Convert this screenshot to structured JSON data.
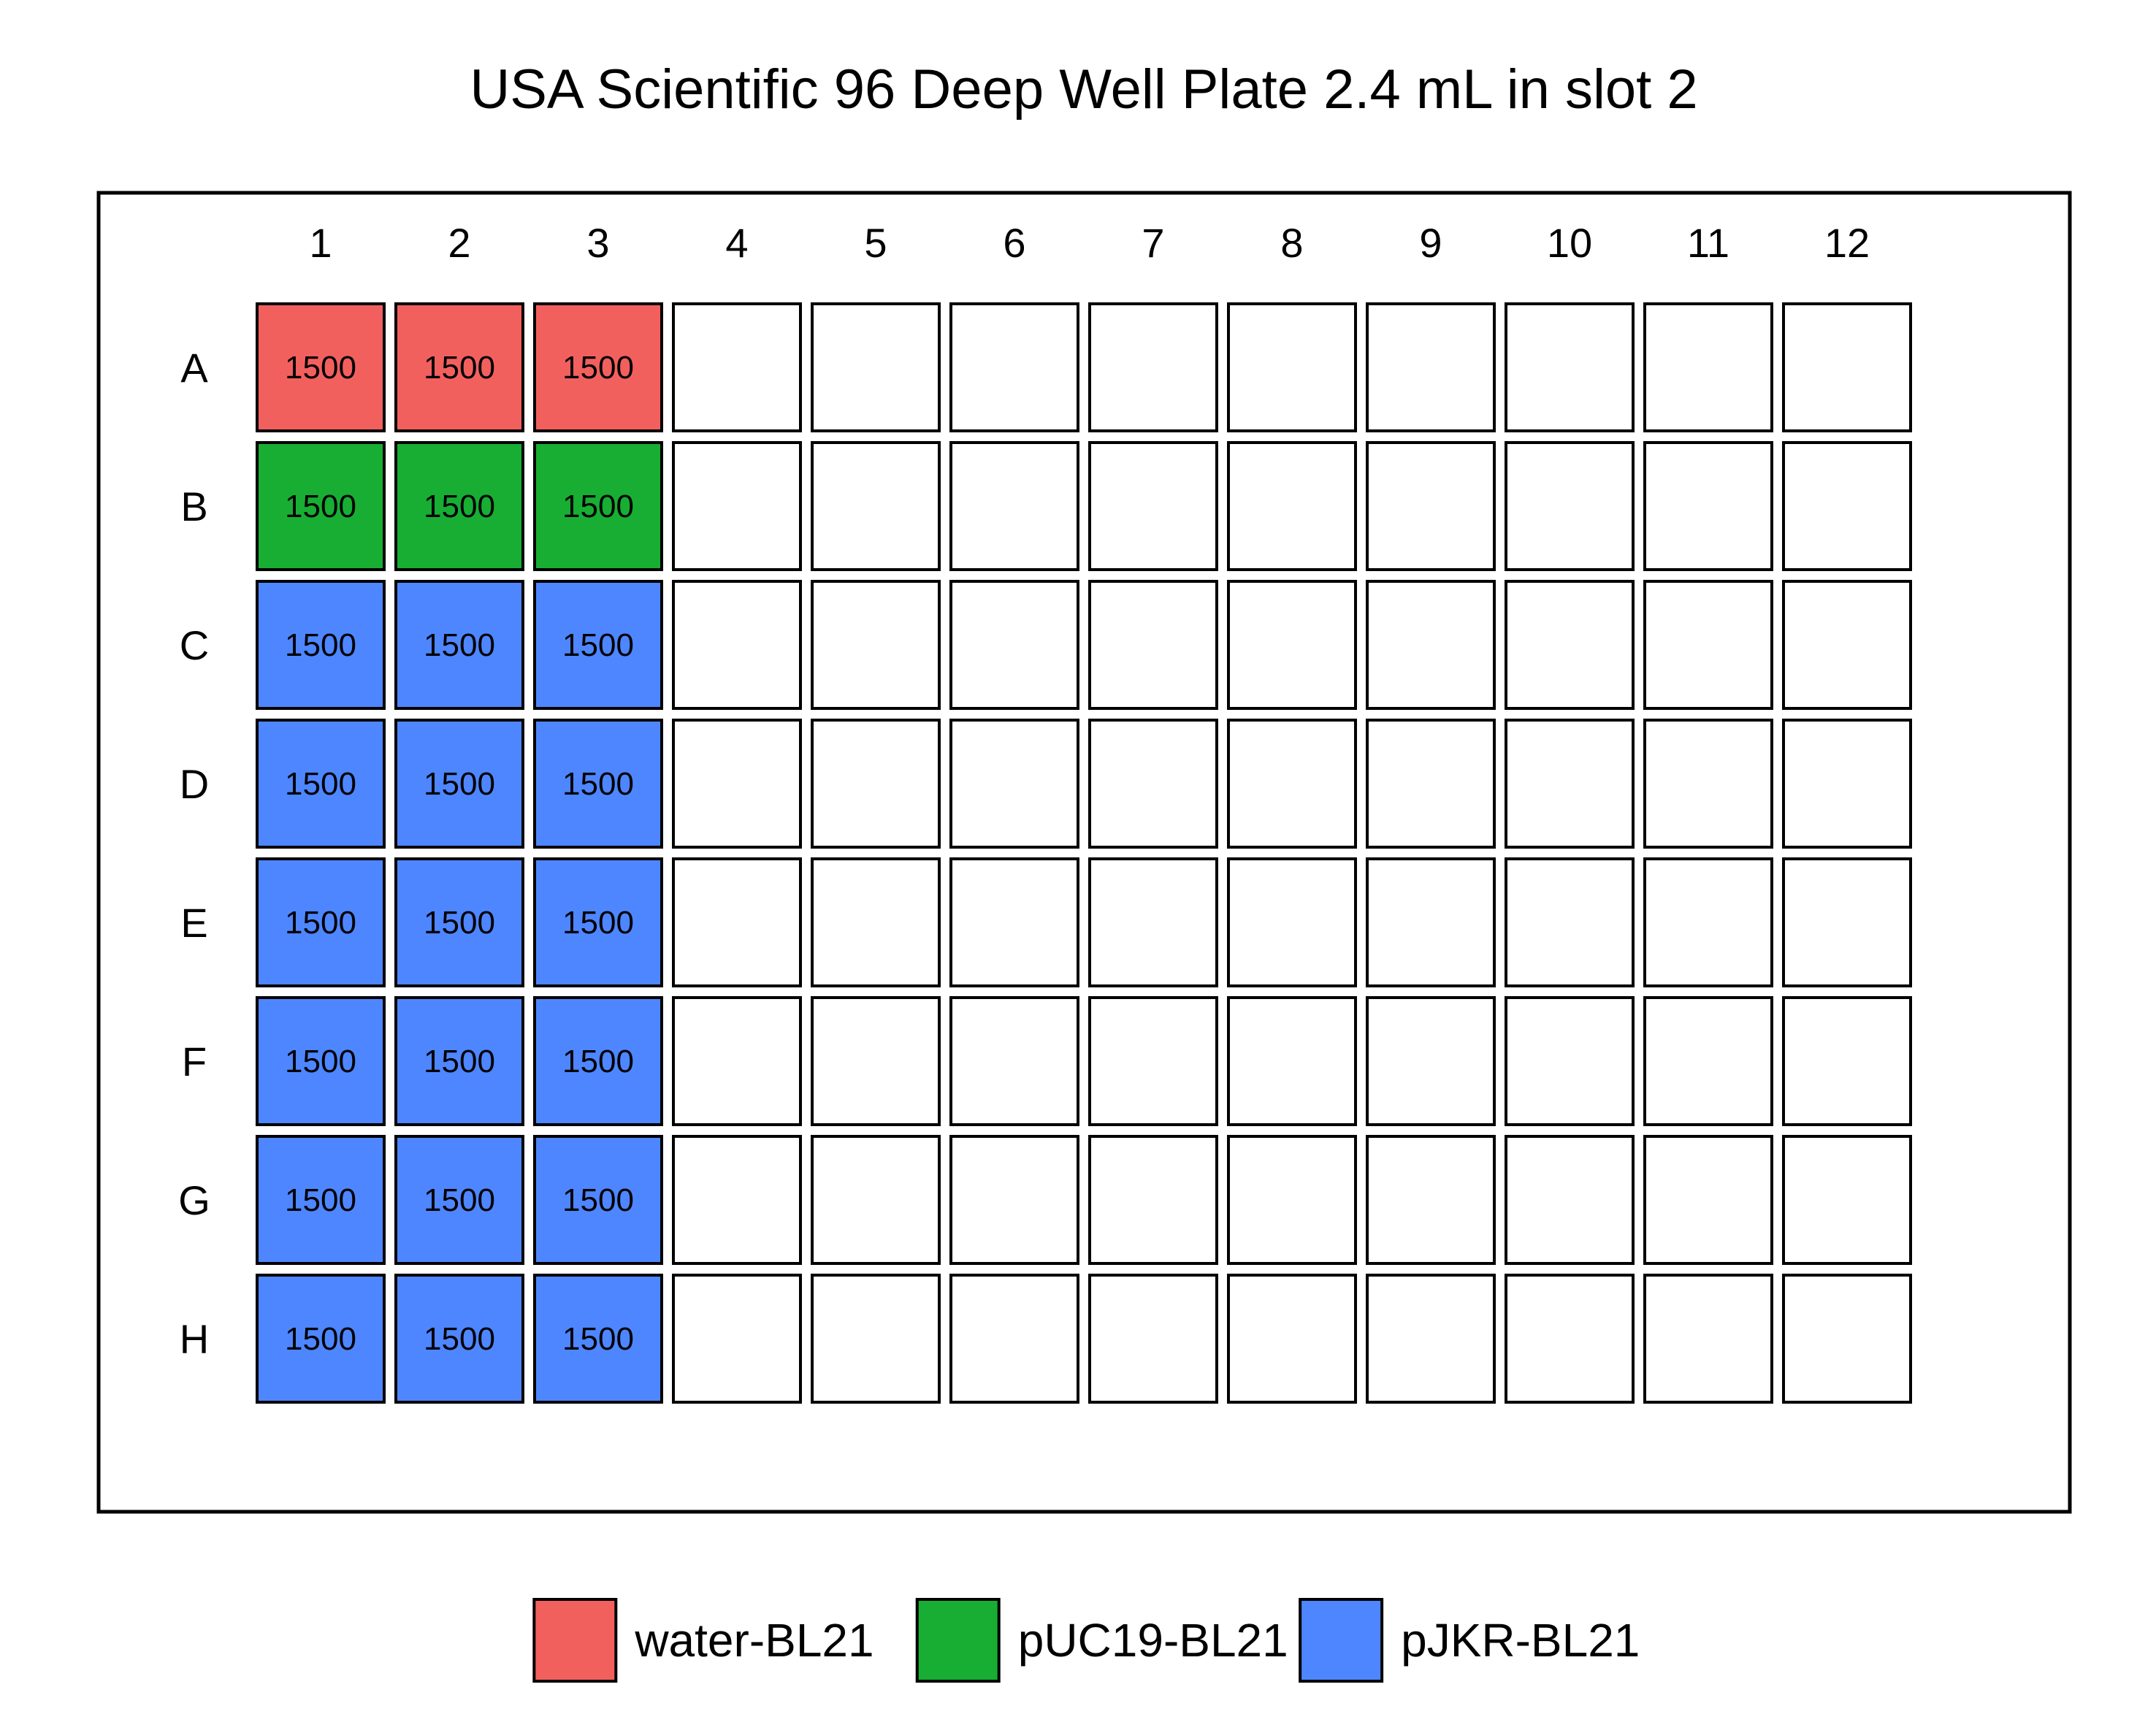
{
  "title": "USA Scientific 96 Deep Well Plate 2.4 mL in slot 2",
  "plate": {
    "rows": [
      "A",
      "B",
      "C",
      "D",
      "E",
      "F",
      "G",
      "H"
    ],
    "columns": [
      "1",
      "2",
      "3",
      "4",
      "5",
      "6",
      "7",
      "8",
      "9",
      "10",
      "11",
      "12"
    ],
    "empty_color": "#ffffff",
    "wells": [
      {
        "row": "A",
        "col": "1",
        "volume": "1500",
        "sample": "water-BL21"
      },
      {
        "row": "A",
        "col": "2",
        "volume": "1500",
        "sample": "water-BL21"
      },
      {
        "row": "A",
        "col": "3",
        "volume": "1500",
        "sample": "water-BL21"
      },
      {
        "row": "B",
        "col": "1",
        "volume": "1500",
        "sample": "pUC19-BL21"
      },
      {
        "row": "B",
        "col": "2",
        "volume": "1500",
        "sample": "pUC19-BL21"
      },
      {
        "row": "B",
        "col": "3",
        "volume": "1500",
        "sample": "pUC19-BL21"
      },
      {
        "row": "C",
        "col": "1",
        "volume": "1500",
        "sample": "pJKR-BL21"
      },
      {
        "row": "C",
        "col": "2",
        "volume": "1500",
        "sample": "pJKR-BL21"
      },
      {
        "row": "C",
        "col": "3",
        "volume": "1500",
        "sample": "pJKR-BL21"
      },
      {
        "row": "D",
        "col": "1",
        "volume": "1500",
        "sample": "pJKR-BL21"
      },
      {
        "row": "D",
        "col": "2",
        "volume": "1500",
        "sample": "pJKR-BL21"
      },
      {
        "row": "D",
        "col": "3",
        "volume": "1500",
        "sample": "pJKR-BL21"
      },
      {
        "row": "E",
        "col": "1",
        "volume": "1500",
        "sample": "pJKR-BL21"
      },
      {
        "row": "E",
        "col": "2",
        "volume": "1500",
        "sample": "pJKR-BL21"
      },
      {
        "row": "E",
        "col": "3",
        "volume": "1500",
        "sample": "pJKR-BL21"
      },
      {
        "row": "F",
        "col": "1",
        "volume": "1500",
        "sample": "pJKR-BL21"
      },
      {
        "row": "F",
        "col": "2",
        "volume": "1500",
        "sample": "pJKR-BL21"
      },
      {
        "row": "F",
        "col": "3",
        "volume": "1500",
        "sample": "pJKR-BL21"
      },
      {
        "row": "G",
        "col": "1",
        "volume": "1500",
        "sample": "pJKR-BL21"
      },
      {
        "row": "G",
        "col": "2",
        "volume": "1500",
        "sample": "pJKR-BL21"
      },
      {
        "row": "G",
        "col": "3",
        "volume": "1500",
        "sample": "pJKR-BL21"
      },
      {
        "row": "H",
        "col": "1",
        "volume": "1500",
        "sample": "pJKR-BL21"
      },
      {
        "row": "H",
        "col": "2",
        "volume": "1500",
        "sample": "pJKR-BL21"
      },
      {
        "row": "H",
        "col": "3",
        "volume": "1500",
        "sample": "pJKR-BL21"
      }
    ]
  },
  "legend": [
    {
      "label": "water-BL21",
      "color": "#f2605e"
    },
    {
      "label": "pUC19-BL21",
      "color": "#17ae33"
    },
    {
      "label": "pJKR-BL21",
      "color": "#4e86ff"
    }
  ]
}
